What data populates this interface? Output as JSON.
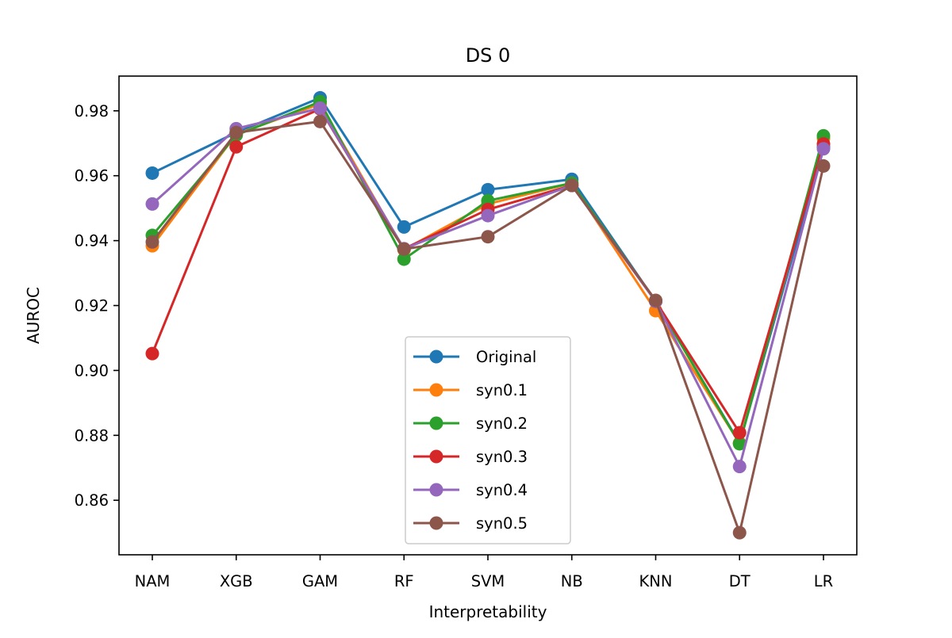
{
  "chart_data": {
    "type": "line",
    "title": "DS 0",
    "xlabel": "Interpretability",
    "ylabel": "AUROC",
    "categories": [
      "NAM",
      "XGB",
      "GAM",
      "RF",
      "SVM",
      "NB",
      "KNN",
      "DT",
      "LR"
    ],
    "ylim": [
      0.8432,
      0.9907
    ],
    "yticks": [
      0.86,
      0.88,
      0.9,
      0.92,
      0.94,
      0.96,
      0.98
    ],
    "ytick_labels": [
      "0.86",
      "0.88",
      "0.90",
      "0.92",
      "0.94",
      "0.96",
      "0.98"
    ],
    "grid": false,
    "legend_position": "lower center",
    "markers": true,
    "series": [
      {
        "name": "Original",
        "color": "#1f77b4",
        "values": [
          0.9608,
          0.9733,
          0.984,
          0.9442,
          0.9557,
          0.9589,
          0.9213,
          0.8776,
          0.9688
        ]
      },
      {
        "name": "syn0.1",
        "color": "#ff7f0e",
        "values": [
          0.9384,
          0.9728,
          0.9821,
          0.9372,
          0.9513,
          0.9577,
          0.9184,
          0.8776,
          0.9715
        ]
      },
      {
        "name": "syn0.2",
        "color": "#2ca02c",
        "values": [
          0.9416,
          0.9725,
          0.9828,
          0.9343,
          0.9523,
          0.9577,
          0.9213,
          0.8774,
          0.9723
        ]
      },
      {
        "name": "syn0.3",
        "color": "#d62728",
        "values": [
          0.9052,
          0.9689,
          0.9806,
          0.9375,
          0.9496,
          0.957,
          0.9213,
          0.8808,
          0.9698
        ]
      },
      {
        "name": "syn0.4",
        "color": "#9467bd",
        "values": [
          0.9513,
          0.9745,
          0.9808,
          0.9375,
          0.9477,
          0.957,
          0.9213,
          0.8704,
          0.9683
        ]
      },
      {
        "name": "syn0.5",
        "color": "#8c564b",
        "values": [
          0.9396,
          0.9733,
          0.9767,
          0.9374,
          0.9412,
          0.957,
          0.9216,
          0.85,
          0.963
        ]
      }
    ]
  }
}
